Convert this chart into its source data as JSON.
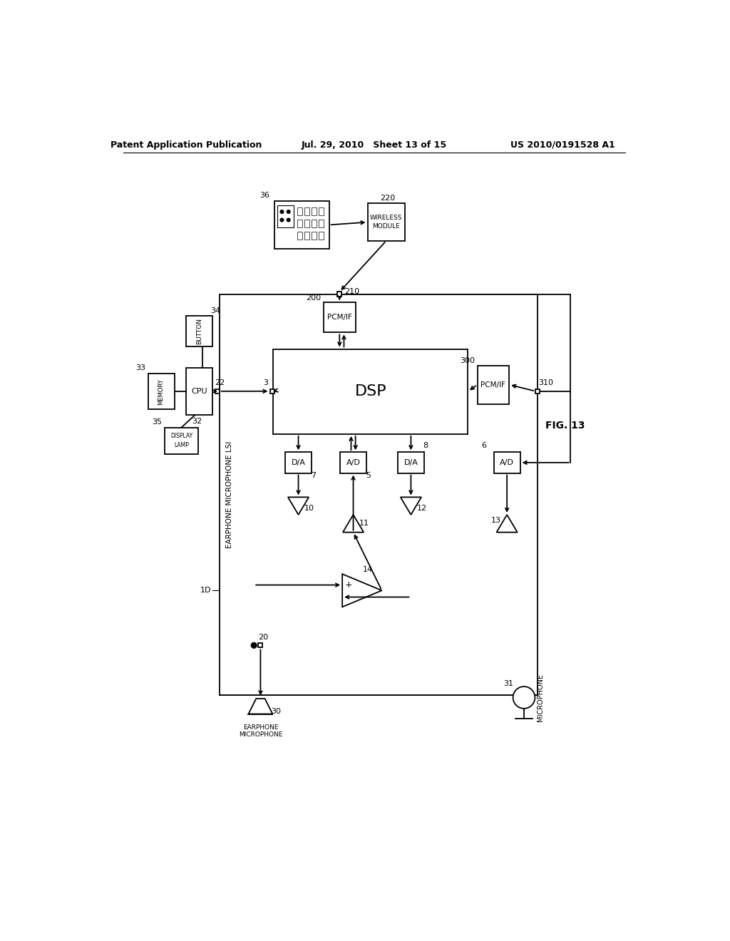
{
  "title_left": "Patent Application Publication",
  "title_center": "Jul. 29, 2010   Sheet 13 of 15",
  "title_right": "US 2010/0191528 A1",
  "fig_label": "FIG. 13",
  "background_color": "#ffffff",
  "line_color": "#000000"
}
